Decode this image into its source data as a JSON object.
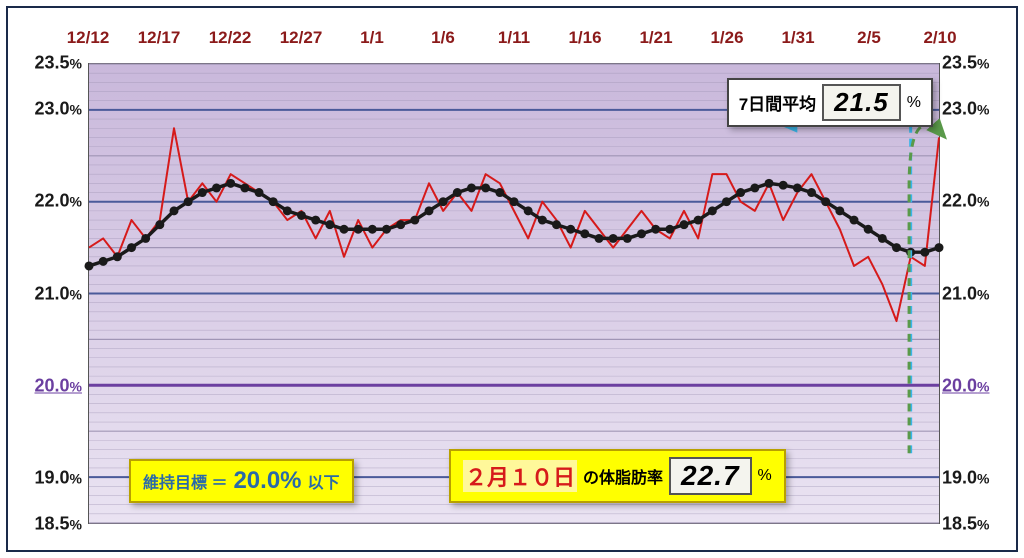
{
  "chart": {
    "type": "line",
    "x_labels": [
      "12/12",
      "12/17",
      "12/22",
      "12/27",
      "1/1",
      "1/6",
      "1/11",
      "1/16",
      "1/21",
      "1/26",
      "1/31",
      "2/5",
      "2/10"
    ],
    "y_ticks_major": [
      19.0,
      20.0,
      21.0,
      22.0,
      23.0
    ],
    "y_ticks_minor_step": 0.1,
    "ylim": [
      18.5,
      23.5
    ],
    "target_line_y": 20.0,
    "x_label_color": "#8b1a1a",
    "y_label_color": "#1a1a1a",
    "accent_y_color": "#6b3fa0",
    "background_gradient_top": "#c9b8db",
    "background_gradient_bottom": "#eae3f2",
    "gridline_color_minor": "#9a8fb0",
    "gridline_color_major": "#4a5a9a",
    "target_line_color": "#6b3fa0",
    "target_line_width": 3,
    "daily_series": {
      "color": "#d61a1a",
      "width": 2,
      "values": [
        21.5,
        21.6,
        21.4,
        21.8,
        21.6,
        21.8,
        22.8,
        22.0,
        22.2,
        22.0,
        22.3,
        22.2,
        22.1,
        22.0,
        21.8,
        21.9,
        21.6,
        21.9,
        21.4,
        21.8,
        21.5,
        21.7,
        21.8,
        21.8,
        22.2,
        21.9,
        22.1,
        21.9,
        22.3,
        22.2,
        21.9,
        21.6,
        22.0,
        21.8,
        21.5,
        21.9,
        21.7,
        21.5,
        21.7,
        21.9,
        21.7,
        21.6,
        21.9,
        21.6,
        22.3,
        22.3,
        22.0,
        21.9,
        22.2,
        21.8,
        22.1,
        22.3,
        22.0,
        21.7,
        21.3,
        21.4,
        21.1,
        20.7,
        21.4,
        21.3,
        22.7
      ]
    },
    "moving_avg_series": {
      "color": "#1a1a1a",
      "width": 3.5,
      "marker_color": "#1a1a1a",
      "marker_size": 4.5,
      "values": [
        21.3,
        21.35,
        21.4,
        21.5,
        21.6,
        21.75,
        21.9,
        22.0,
        22.1,
        22.15,
        22.2,
        22.15,
        22.1,
        22.0,
        21.9,
        21.85,
        21.8,
        21.75,
        21.7,
        21.7,
        21.7,
        21.7,
        21.75,
        21.8,
        21.9,
        22.0,
        22.1,
        22.15,
        22.15,
        22.1,
        22.0,
        21.9,
        21.8,
        21.75,
        21.7,
        21.65,
        21.6,
        21.6,
        21.6,
        21.65,
        21.7,
        21.7,
        21.75,
        21.8,
        21.9,
        22.0,
        22.1,
        22.15,
        22.2,
        22.18,
        22.15,
        22.1,
        22.0,
        21.9,
        21.8,
        21.7,
        21.6,
        21.5,
        21.45,
        21.45,
        21.5
      ]
    },
    "callout_arrows": {
      "avg_arrow_color": "#3ab5e8",
      "current_arrow_color": "#5a9a4a"
    }
  },
  "info_avg": {
    "label": "7日間平均",
    "value": "21.5",
    "unit": "%"
  },
  "target_box": {
    "label_prefix": "維持目標 ＝",
    "value": "20.0%",
    "value_color": "#2a6aa8",
    "suffix": "以下"
  },
  "current_box": {
    "date_label": "２月１０日",
    "date_color": "#d61a1a",
    "label_suffix": "の体脂肪率",
    "value": "22.7",
    "unit": "%"
  }
}
